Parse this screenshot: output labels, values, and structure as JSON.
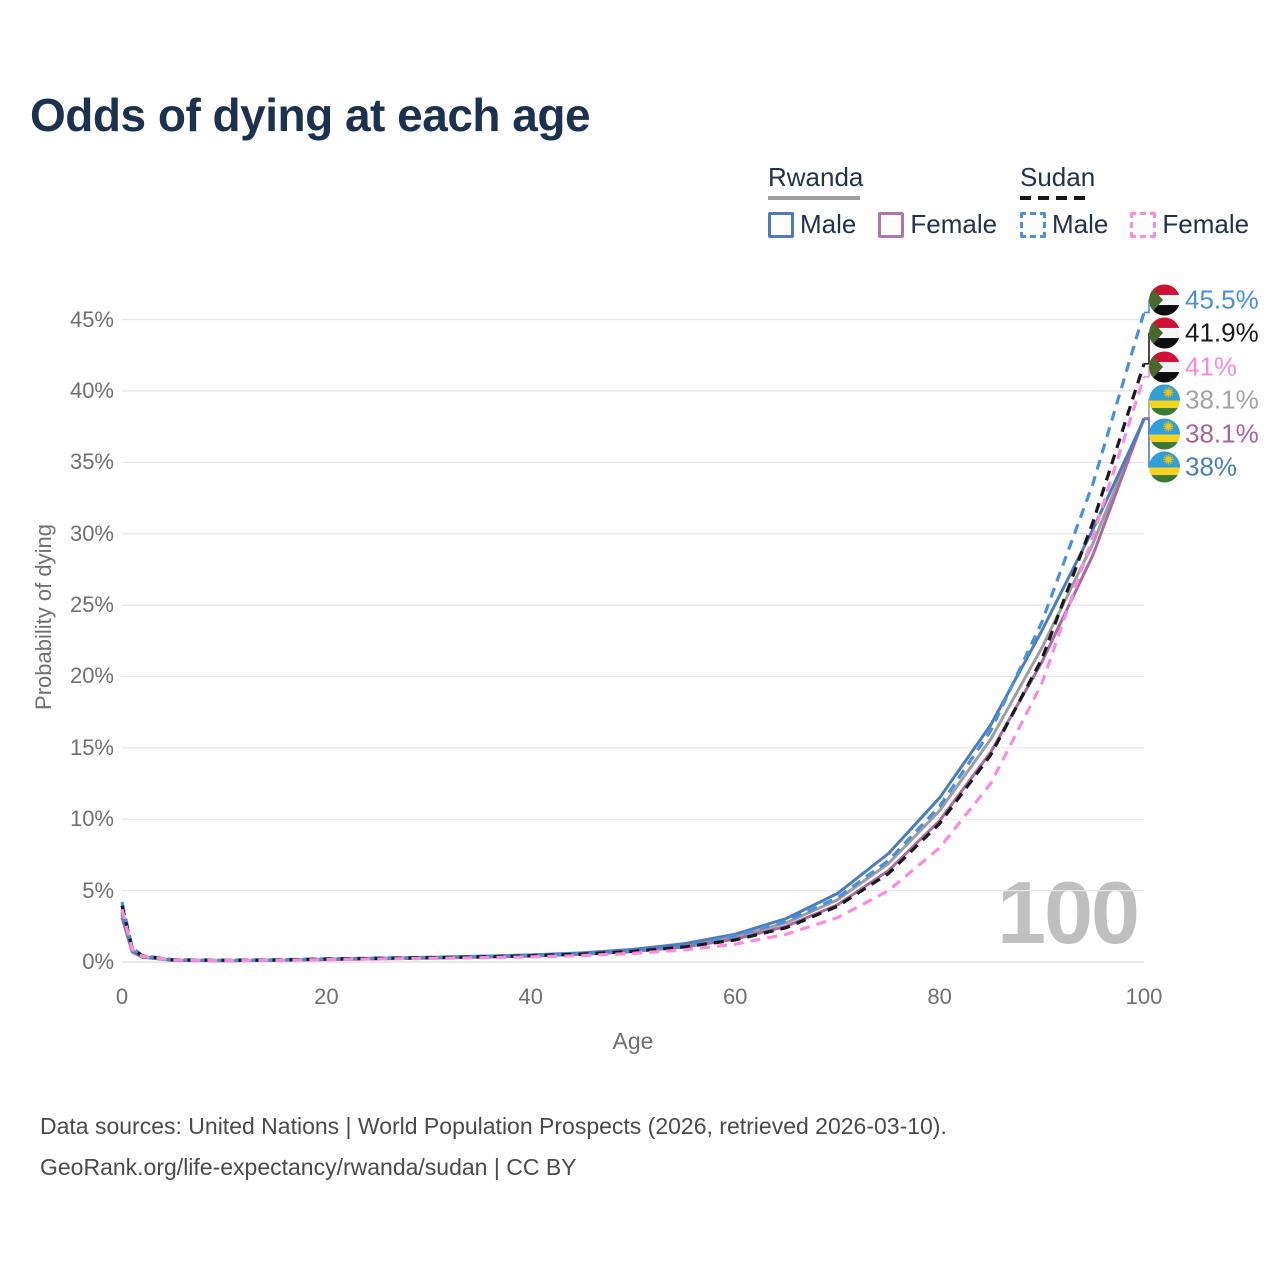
{
  "title": "Odds of dying at each age",
  "legend": {
    "male_label": "Male",
    "female_label": "Female",
    "rwanda": {
      "label": "Rwanda",
      "rule_style": "solid",
      "rule_color": "#9e9e9e",
      "male_color": "#4d7cbd",
      "female_color": "#b175ae"
    },
    "sudan": {
      "label": "Sudan",
      "rule_style": "dashed",
      "rule_color": "#161616",
      "male_color": "#4a90e2",
      "female_color": "#fb8be0"
    }
  },
  "footer": {
    "line1": "Data sources: United Nations | World Population Prospects (2026, retrieved 2026-03-10).",
    "line2": "GeoRank.org/life-expectancy/rwanda/sudan | CC BY"
  },
  "chart_data": {
    "type": "line",
    "title": "Odds of dying at each age",
    "xlabel": "Age",
    "ylabel": "Probability of dying",
    "watermark": "100",
    "xlim": [
      0,
      100
    ],
    "ylim": [
      0,
      47
    ],
    "x_ticks": [
      0,
      20,
      40,
      60,
      80,
      100
    ],
    "y_ticks_percent": [
      0,
      5,
      10,
      15,
      20,
      25,
      30,
      35,
      40,
      45
    ],
    "grid": "horizontal",
    "legend_position": "top-right",
    "ages": [
      0,
      1,
      2,
      5,
      10,
      15,
      20,
      25,
      30,
      35,
      40,
      45,
      50,
      55,
      60,
      65,
      70,
      75,
      80,
      85,
      90,
      95,
      100
    ],
    "series": [
      {
        "id": "sudan-male",
        "name": "Sudan Male",
        "country": "Sudan",
        "sex": "Male",
        "line_style": "dashed",
        "color": "#4a90e2",
        "label_color": "#478fe0",
        "end_label": "45.5%",
        "flag": "sudan",
        "values": [
          4.2,
          1.0,
          0.45,
          0.16,
          0.13,
          0.16,
          0.23,
          0.28,
          0.33,
          0.39,
          0.47,
          0.58,
          0.78,
          1.08,
          1.85,
          2.85,
          4.5,
          7.1,
          10.9,
          16.2,
          23.8,
          33.5,
          45.5
        ]
      },
      {
        "id": "sudan-total",
        "name": "Sudan Both sexes",
        "country": "Sudan",
        "sex": "Both",
        "line_style": "dashed",
        "color": "#1a1a1a",
        "label_color": "#1a1a1a",
        "end_label": "41.9%",
        "flag": "sudan",
        "values": [
          3.95,
          0.95,
          0.42,
          0.15,
          0.12,
          0.14,
          0.2,
          0.25,
          0.3,
          0.36,
          0.44,
          0.55,
          0.75,
          1.05,
          1.55,
          2.4,
          3.9,
          6.2,
          9.7,
          14.5,
          21.2,
          30.8,
          41.9
        ]
      },
      {
        "id": "sudan-female",
        "name": "Sudan Female",
        "country": "Sudan",
        "sex": "Female",
        "line_style": "dashed",
        "color": "#fb8be0",
        "label_color": "#f988e4",
        "end_label": "41%",
        "flag": "sudan",
        "values": [
          3.7,
          0.88,
          0.4,
          0.14,
          0.11,
          0.12,
          0.17,
          0.21,
          0.25,
          0.3,
          0.36,
          0.45,
          0.6,
          0.85,
          1.25,
          1.95,
          3.1,
          5.0,
          8.0,
          12.5,
          19.5,
          29.8,
          41.0
        ]
      },
      {
        "id": "rwanda-total",
        "name": "Rwanda Both sexes",
        "country": "Rwanda",
        "sex": "Both",
        "line_style": "solid",
        "color": "#9e9e9e",
        "label_color": "#a3a3a3",
        "end_label": "38.1%",
        "flag": "rwanda",
        "values": [
          3.3,
          0.75,
          0.35,
          0.12,
          0.09,
          0.12,
          0.18,
          0.23,
          0.28,
          0.35,
          0.43,
          0.56,
          0.78,
          1.13,
          1.75,
          2.75,
          4.35,
          6.9,
          10.6,
          15.6,
          22.0,
          29.3,
          38.1
        ]
      },
      {
        "id": "rwanda-female",
        "name": "Rwanda Female",
        "country": "Rwanda",
        "sex": "Female",
        "line_style": "solid",
        "color": "#a86aa4",
        "label_color": "#a5639f",
        "end_label": "38.1%",
        "flag": "rwanda",
        "values": [
          3.1,
          0.7,
          0.33,
          0.11,
          0.09,
          0.11,
          0.17,
          0.22,
          0.27,
          0.33,
          0.41,
          0.53,
          0.73,
          1.05,
          1.6,
          2.5,
          4.0,
          6.4,
          9.9,
          14.7,
          21.0,
          28.5,
          38.1
        ]
      },
      {
        "id": "rwanda-male",
        "name": "Rwanda Male",
        "country": "Rwanda",
        "sex": "Male",
        "line_style": "solid",
        "color": "#4d7cbd",
        "label_color": "#4a7dbf",
        "end_label": "38%",
        "flag": "rwanda",
        "values": [
          3.5,
          0.8,
          0.38,
          0.13,
          0.1,
          0.13,
          0.2,
          0.26,
          0.32,
          0.4,
          0.5,
          0.64,
          0.88,
          1.28,
          1.95,
          3.05,
          4.8,
          7.6,
          11.5,
          16.6,
          23.2,
          30.3,
          38.0
        ]
      }
    ]
  }
}
